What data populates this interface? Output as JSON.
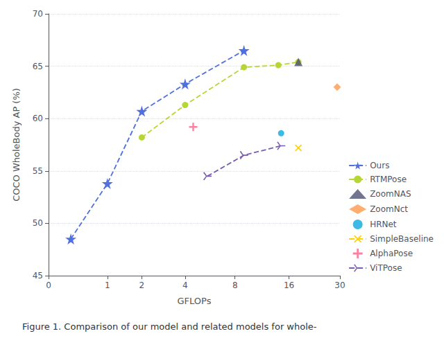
{
  "chart_data": {
    "type": "line",
    "xlabel": "GFLOPs",
    "ylabel": "COCO WholeBody AP (%)",
    "caption": "Figure 1. Comparison of our model and related models for whole-",
    "xlim": [
      0,
      30
    ],
    "xticks": [
      0,
      1,
      2,
      4,
      8,
      16,
      30
    ],
    "ylim": [
      45,
      70
    ],
    "yticks": [
      45,
      50,
      55,
      60,
      65,
      70
    ],
    "grid": true,
    "legend": "lower right",
    "series": [
      {
        "name": "Ours",
        "x": [
          0.3,
          1.0,
          2.0,
          4.0,
          9.0
        ],
        "values": [
          48.5,
          53.8,
          60.7,
          63.3,
          66.5
        ],
        "marker": "star",
        "line_style": "dashed"
      },
      {
        "name": "RTMPose",
        "x": [
          2.0,
          4.0,
          9.0,
          14.0,
          18.0
        ],
        "values": [
          58.2,
          61.3,
          64.9,
          65.1,
          65.4
        ],
        "marker": "circle",
        "line_style": "dashed"
      },
      {
        "name": "ZoomNAS",
        "x": [
          18.0
        ],
        "values": [
          65.4
        ],
        "marker": "triangle",
        "line_style": "none"
      },
      {
        "name": "ZoomNct",
        "x": [
          29.0
        ],
        "values": [
          63.0
        ],
        "marker": "diamond",
        "line_style": "none"
      },
      {
        "name": "HRNet",
        "x": [
          14.5
        ],
        "values": [
          58.6
        ],
        "marker": "circle",
        "line_style": "none"
      },
      {
        "name": "SimpleBaseline",
        "x": [
          18.0
        ],
        "values": [
          57.2
        ],
        "marker": "x",
        "line_style": "dashed"
      },
      {
        "name": "AlphaPose",
        "x": [
          4.5
        ],
        "values": [
          59.2
        ],
        "marker": "plus",
        "line_style": "none"
      },
      {
        "name": "ViTPose",
        "x": [
          5.5,
          9.0,
          14.5
        ],
        "values": [
          54.5,
          56.5,
          57.4
        ],
        "marker": "tri_right",
        "line_style": "dashed"
      }
    ]
  }
}
